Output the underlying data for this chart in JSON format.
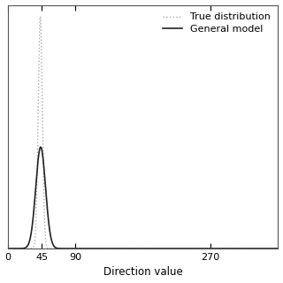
{
  "title": "",
  "xlabel": "Direction value",
  "ylabel": "",
  "xlim": [
    0,
    360
  ],
  "ylim": [
    0,
    0.42
  ],
  "xticks": [
    0,
    45,
    90,
    270
  ],
  "xtick_labels": [
    "0",
    "45",
    "90",
    "270"
  ],
  "legend_labels": [
    "True distribution",
    "General model"
  ],
  "true_dist_mean": 43.0,
  "true_dist_std": 2.8,
  "true_dist_amplitude": 0.4,
  "general_model_mean": 43.5,
  "general_model_std": 6.5,
  "general_model_amplitude": 0.175,
  "true_dist_color": "#aaaaaa",
  "general_model_color": "#222222",
  "background_color": "#ffffff",
  "legend_fontsize": 8,
  "axis_fontsize": 8.5,
  "tick_fontsize": 8
}
